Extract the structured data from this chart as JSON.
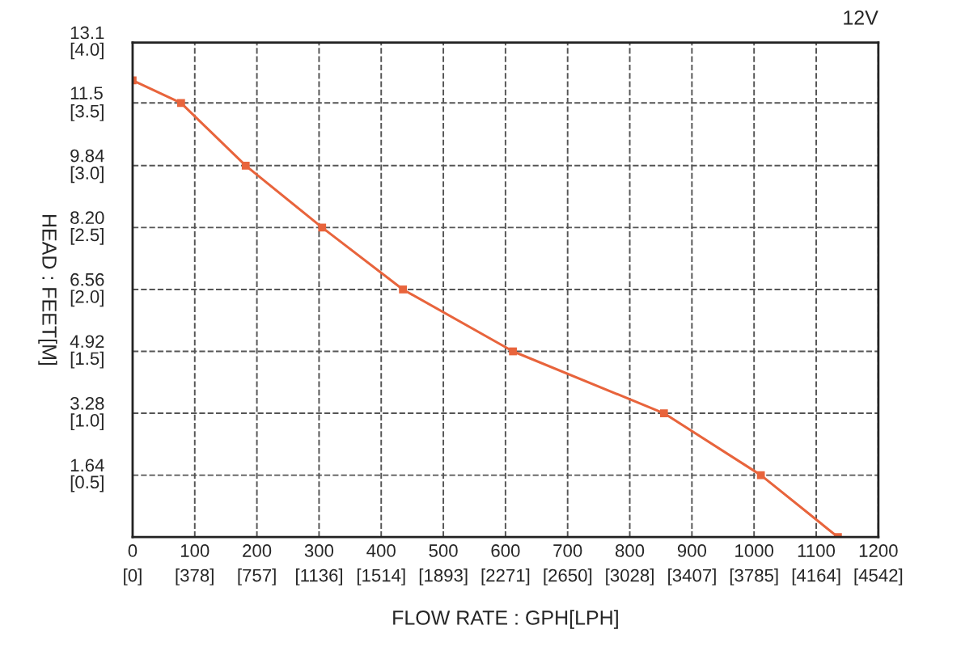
{
  "chart_data": {
    "type": "line",
    "title": "12V",
    "xlabel": "FLOW RATE : GPH[LPH]",
    "ylabel": "HEAD : FEET[M]",
    "x": [
      0,
      78,
      182,
      305,
      435,
      612,
      855,
      1011,
      1135
    ],
    "series": [
      {
        "color": "#e8643c",
        "values": [
          12.1,
          11.5,
          9.84,
          8.2,
          6.56,
          4.92,
          3.28,
          1.64,
          0
        ]
      }
    ],
    "xlim": [
      0,
      1200
    ],
    "ylim": [
      0,
      13.1
    ],
    "xticks": [
      0,
      100,
      200,
      300,
      400,
      500,
      600,
      700,
      800,
      900,
      1000,
      1100,
      1200
    ],
    "x2lim": [
      0,
      4542
    ],
    "x2ticks": [
      {
        "value": 0,
        "label": "[0]"
      },
      {
        "value": 378,
        "label": "[378]"
      },
      {
        "value": 757,
        "label": "[757]"
      },
      {
        "value": 1136,
        "label": "[1136]"
      },
      {
        "value": 1514,
        "label": "[1514]"
      },
      {
        "value": 1893,
        "label": "[1893]"
      },
      {
        "value": 2271,
        "label": "[2271]"
      },
      {
        "value": 2650,
        "label": "[2650]"
      },
      {
        "value": 3028,
        "label": "[3028]"
      },
      {
        "value": 3407,
        "label": "[3407]"
      },
      {
        "value": 3785,
        "label": "[3785]"
      },
      {
        "value": 4164,
        "label": "[4164]"
      },
      {
        "value": 4542,
        "label": "[4542]"
      }
    ],
    "yticks": [
      {
        "value": 1.64,
        "label": "1.64"
      },
      {
        "value": 3.28,
        "label": "3.28"
      },
      {
        "value": 4.92,
        "label": "4.92"
      },
      {
        "value": 6.56,
        "label": "6.56"
      },
      {
        "value": 8.2,
        "label": "8.20"
      },
      {
        "value": 9.84,
        "label": "9.84"
      },
      {
        "value": 11.5,
        "label": "11.5"
      },
      {
        "value": 13.1,
        "label": "13.1"
      }
    ],
    "y2lim": [
      0,
      4.0
    ],
    "y2ticks": [
      {
        "value": 0.5,
        "label": "[0.5]"
      },
      {
        "value": 1.0,
        "label": "[1.0]"
      },
      {
        "value": 1.5,
        "label": "[1.5]"
      },
      {
        "value": 2.0,
        "label": "[2.0]"
      },
      {
        "value": 2.5,
        "label": "[2.5]"
      },
      {
        "value": 3.0,
        "label": "[3.0]"
      },
      {
        "value": 3.5,
        "label": "[3.5]"
      },
      {
        "value": 4.0,
        "label": "[4.0]"
      }
    ],
    "grid": true,
    "marker": "square",
    "line_style": "solid",
    "legend": false
  }
}
